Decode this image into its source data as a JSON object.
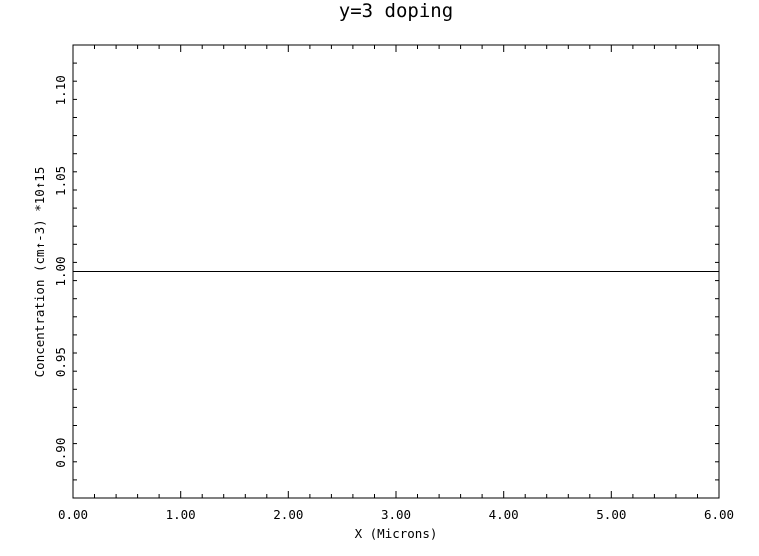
{
  "chart_data": {
    "type": "line",
    "title": "y=3 doping",
    "xlabel": "X (Microns)",
    "ylabel": "Concentration (cm↑-3) *10↑15",
    "xlim": [
      0.0,
      6.0
    ],
    "ylim": [
      0.875,
      1.125
    ],
    "x_ticks": [
      0.0,
      1.0,
      2.0,
      3.0,
      4.0,
      5.0,
      6.0
    ],
    "x_tick_labels": [
      "0.00",
      "1.00",
      "2.00",
      "3.00",
      "4.00",
      "5.00",
      "6.00"
    ],
    "y_ticks": [
      0.9,
      0.95,
      1.0,
      1.05,
      1.1
    ],
    "y_tick_labels": [
      "0.90",
      "0.95",
      "1.00",
      "1.05",
      "1.10"
    ],
    "grid": false,
    "series": [
      {
        "x": [
          0.0,
          6.0
        ],
        "y": [
          1.0,
          1.0
        ]
      }
    ]
  }
}
